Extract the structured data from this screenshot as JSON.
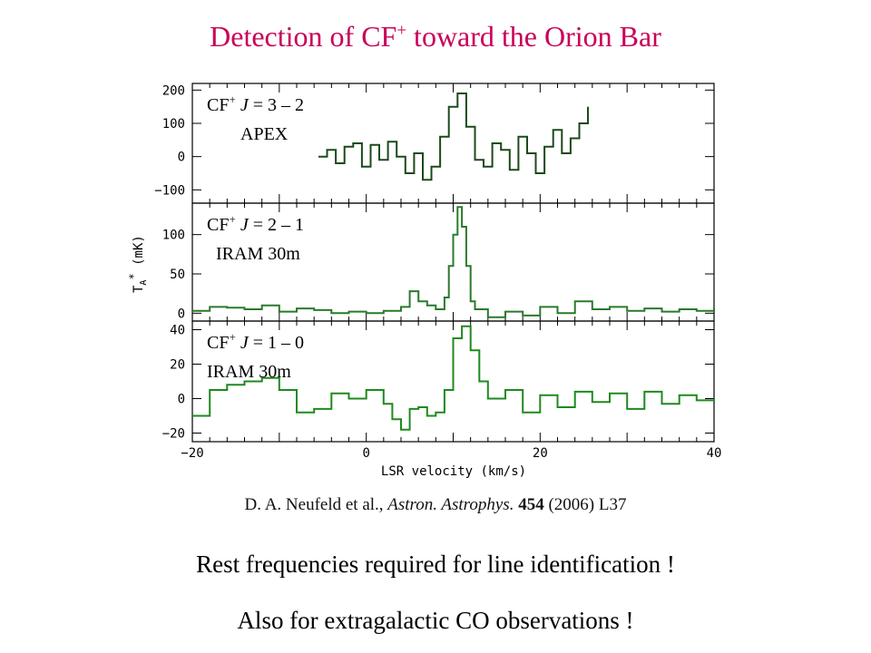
{
  "title": {
    "text": "Detection of CF",
    "sup": "+",
    "rest": " toward the Orion Bar"
  },
  "citation": {
    "authors": "D. A. Neufeld et al., ",
    "journal": "Astron. Astrophys.",
    "volume": "454",
    "rest": " (2006) L37"
  },
  "notes": [
    "Rest frequencies required for line identification !",
    "Also for extragalactic CO observations !"
  ],
  "chart_data": {
    "type": "line",
    "xlabel": "LSR velocity (km/s)",
    "ylabel": "T_A* (mK)",
    "xlim": [
      -20,
      40
    ],
    "xticks": [
      -20,
      0,
      20,
      40
    ],
    "panels": [
      {
        "label_line1": "CF+ J = 3 – 2",
        "label_line2": "APEX",
        "ylim": [
          -140,
          220
        ],
        "yticks": [
          -100,
          0,
          100,
          200
        ],
        "color": "#1b4a1b",
        "series": {
          "x": [
            -5.5,
            -4.5,
            -3.5,
            -2.5,
            -1.5,
            -0.5,
            0.5,
            1.5,
            2.5,
            3.5,
            4.5,
            5.5,
            6.5,
            7.5,
            8.5,
            9.5,
            10.5,
            11.5,
            12.5,
            13.5,
            14.5,
            15.5,
            16.5,
            17.5,
            18.5,
            19.5,
            20.5,
            21.5,
            22.5,
            23.5,
            24.5,
            25.5
          ],
          "y": [
            0,
            20,
            -20,
            30,
            40,
            -30,
            35,
            -10,
            45,
            0,
            -50,
            10,
            -70,
            -30,
            60,
            150,
            190,
            90,
            -10,
            -30,
            40,
            20,
            -40,
            60,
            10,
            -50,
            30,
            80,
            10,
            55,
            100,
            150
          ]
        }
      },
      {
        "label_line1": "CF+ J = 2 – 1",
        "label_line2": "IRAM 30m",
        "ylim": [
          -10,
          140
        ],
        "yticks": [
          0,
          50,
          100
        ],
        "color": "#2a7a2a",
        "series": {
          "x": [
            -20,
            -18,
            -16,
            -14,
            -12,
            -10,
            -8,
            -6,
            -4,
            -2,
            0,
            2,
            4,
            5,
            6,
            7,
            8,
            9,
            9.5,
            10,
            10.5,
            11,
            11.5,
            12,
            12.5,
            14,
            16,
            18,
            20,
            22,
            24,
            26,
            28,
            30,
            32,
            34,
            36,
            38,
            40
          ],
          "y": [
            3,
            8,
            7,
            5,
            10,
            2,
            6,
            4,
            0,
            2,
            0,
            3,
            8,
            28,
            15,
            10,
            5,
            20,
            60,
            100,
            135,
            110,
            60,
            15,
            5,
            -5,
            2,
            -3,
            8,
            0,
            15,
            5,
            8,
            3,
            6,
            2,
            5,
            3,
            6
          ]
        }
      },
      {
        "label_line1": "CF+ J = 1 – 0",
        "label_line2": "IRAM 30m",
        "ylim": [
          -25,
          45
        ],
        "yticks": [
          -20,
          0,
          20,
          40
        ],
        "color": "#1e8a1e",
        "series": {
          "x": [
            -20,
            -18,
            -16,
            -14,
            -12,
            -10,
            -8,
            -6,
            -4,
            -2,
            0,
            2,
            3,
            4,
            5,
            6,
            7,
            8,
            9,
            10,
            11,
            12,
            13,
            14,
            16,
            18,
            20,
            22,
            24,
            26,
            28,
            30,
            32,
            34,
            36,
            38,
            40
          ],
          "y": [
            -10,
            5,
            8,
            10,
            12,
            5,
            -8,
            -6,
            3,
            0,
            5,
            -3,
            -12,
            -18,
            -6,
            -5,
            -10,
            -8,
            5,
            35,
            42,
            28,
            10,
            0,
            5,
            -8,
            2,
            -5,
            4,
            -2,
            3,
            -6,
            4,
            -3,
            2,
            -1,
            0
          ]
        }
      }
    ]
  }
}
